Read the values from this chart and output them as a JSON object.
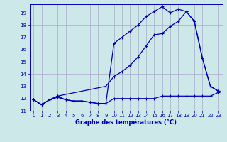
{
  "title": "Graphe des températures (°C)",
  "bg_color": "#cce8e8",
  "grid_color": "#aaaacc",
  "line_color": "#0000bb",
  "xlim": [
    -0.5,
    23.5
  ],
  "ylim": [
    11.0,
    19.7
  ],
  "yticks": [
    11,
    12,
    13,
    14,
    15,
    16,
    17,
    18,
    19
  ],
  "xticks": [
    0,
    1,
    2,
    3,
    4,
    5,
    6,
    7,
    8,
    9,
    10,
    11,
    12,
    13,
    14,
    15,
    16,
    17,
    18,
    19,
    20,
    21,
    22,
    23
  ],
  "series1_x": [
    0,
    1,
    2,
    3,
    4,
    5,
    6,
    7,
    8,
    9,
    10,
    11,
    12,
    13,
    14,
    15,
    16,
    17,
    18,
    19,
    20,
    21,
    22,
    23
  ],
  "series1_y": [
    11.9,
    11.5,
    11.9,
    12.1,
    11.9,
    11.8,
    11.8,
    11.7,
    11.6,
    11.6,
    12.0,
    12.0,
    12.0,
    12.0,
    12.0,
    12.0,
    12.2,
    12.2,
    12.2,
    12.2,
    12.2,
    12.2,
    12.2,
    12.5
  ],
  "series2_x": [
    0,
    1,
    2,
    3,
    4,
    5,
    6,
    7,
    8,
    9,
    10,
    11,
    12,
    13,
    14,
    15,
    16,
    17,
    18,
    19,
    20,
    21,
    22,
    23
  ],
  "series2_y": [
    11.9,
    11.5,
    11.9,
    12.2,
    11.9,
    11.8,
    11.8,
    11.7,
    11.6,
    11.6,
    16.5,
    17.0,
    17.5,
    18.0,
    18.7,
    19.1,
    19.5,
    19.0,
    19.3,
    19.1,
    18.3,
    15.3,
    13.0,
    12.6
  ],
  "series3_x": [
    0,
    1,
    2,
    3,
    9,
    10,
    11,
    12,
    13,
    14,
    15,
    16,
    17,
    18,
    19,
    20,
    21,
    22,
    23
  ],
  "series3_y": [
    11.9,
    11.5,
    11.9,
    12.2,
    13.0,
    13.8,
    14.2,
    14.7,
    15.4,
    16.3,
    17.2,
    17.3,
    17.9,
    18.3,
    19.1,
    18.3,
    15.3,
    13.0,
    12.6
  ]
}
